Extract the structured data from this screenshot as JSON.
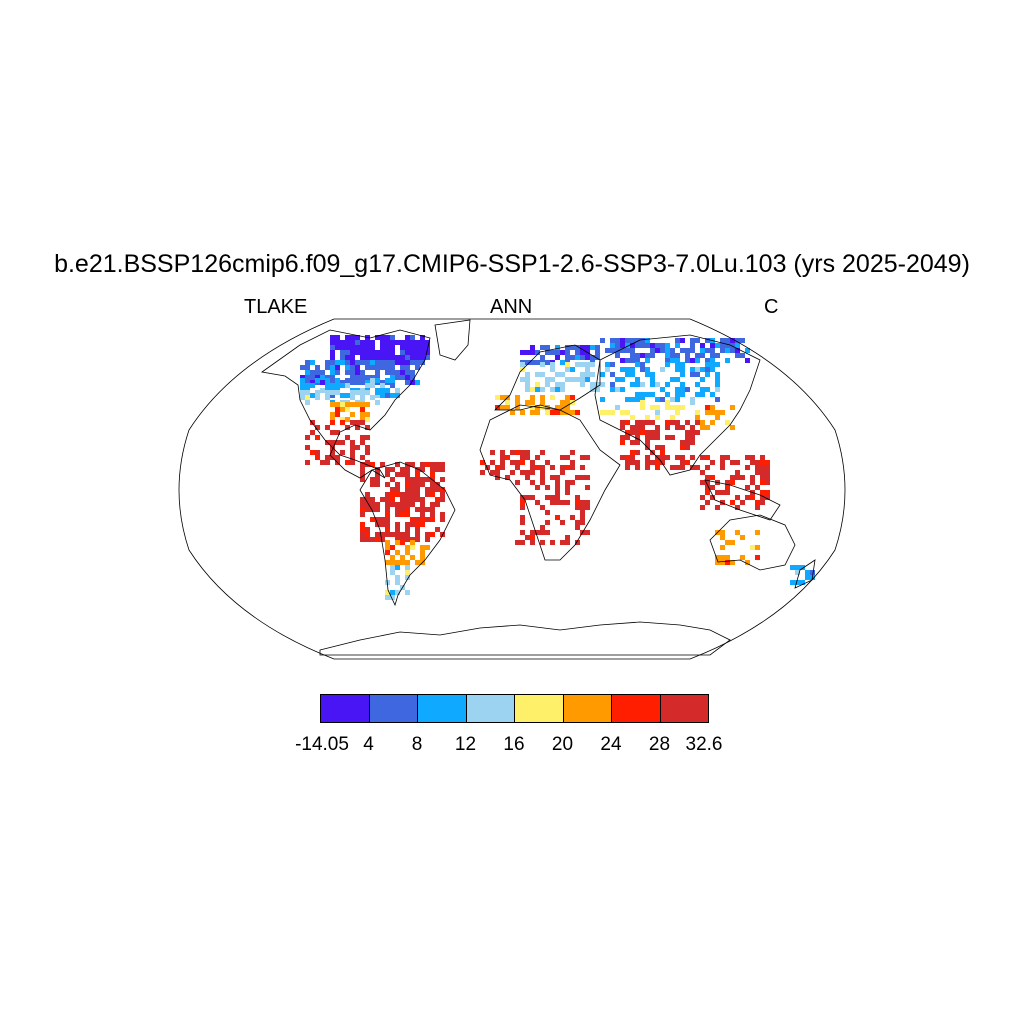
{
  "title": "b.e21.BSSP126cmip6.f09_g17.CMIP6-SSP1-2.6-SSP3-7.0Lu.103 (yrs 2025-2049)",
  "left_label": "TLAKE",
  "center_label": "ANN",
  "right_label": "C",
  "colorbar": {
    "colors": [
      "#4a15f5",
      "#3f67e0",
      "#0fa9ff",
      "#9bd3f0",
      "#fff069",
      "#ff9b00",
      "#ff1f00",
      "#d42a2a"
    ],
    "labels": [
      "-14.05",
      "4",
      "8",
      "12",
      "16",
      "20",
      "24",
      "28",
      "32.6"
    ]
  },
  "map": {
    "projection": "Robinson",
    "variable": "TLAKE",
    "units": "C"
  }
}
